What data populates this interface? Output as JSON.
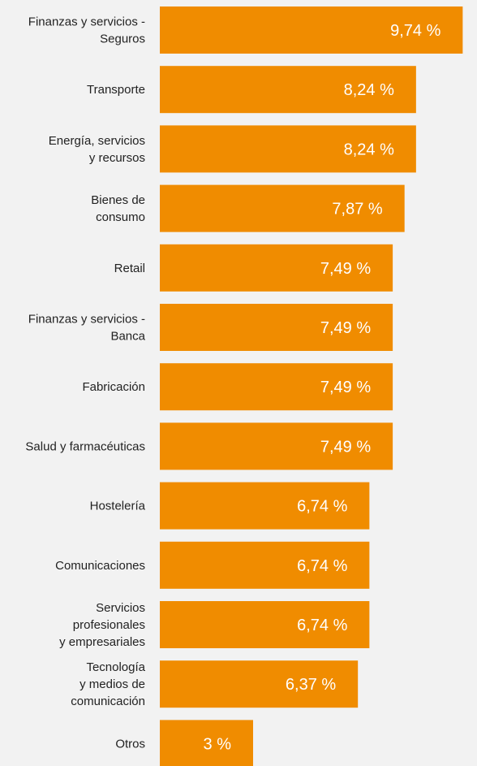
{
  "chart_data": {
    "type": "bar",
    "orientation": "horizontal",
    "bar_color": "#f08c00",
    "label_color": "#ffffff",
    "category_color": "#222222",
    "background": "#f2f2f2",
    "xlim": [
      0,
      10
    ],
    "grid": false,
    "legend": "none",
    "categories": [
      [
        "Finanzas y servicios -",
        "Seguros"
      ],
      [
        "Transporte"
      ],
      [
        "Energía, servicios",
        "y recursos"
      ],
      [
        "Bienes de",
        "consumo"
      ],
      [
        "Retail"
      ],
      [
        "Finanzas y servicios -",
        "Banca"
      ],
      [
        "Fabricación"
      ],
      [
        "Salud y farmacéuticas"
      ],
      [
        "Hostelería"
      ],
      [
        "Comunicaciones"
      ],
      [
        "Servicios",
        "profesionales",
        "y empresariales"
      ],
      [
        "Tecnología",
        "y medios de",
        "comunicación"
      ],
      [
        "Otros"
      ]
    ],
    "values": [
      9.74,
      8.24,
      8.24,
      7.87,
      7.49,
      7.49,
      7.49,
      7.49,
      6.74,
      6.74,
      6.74,
      6.37,
      3
    ],
    "value_labels": [
      "9,74 %",
      "8,24 %",
      "8,24 %",
      "7,87 %",
      "7,49 %",
      "7,49 %",
      "7,49 %",
      "7,49 %",
      "6,74 %",
      "6,74 %",
      "6,74 %",
      "6,37 %",
      "3 %"
    ]
  }
}
